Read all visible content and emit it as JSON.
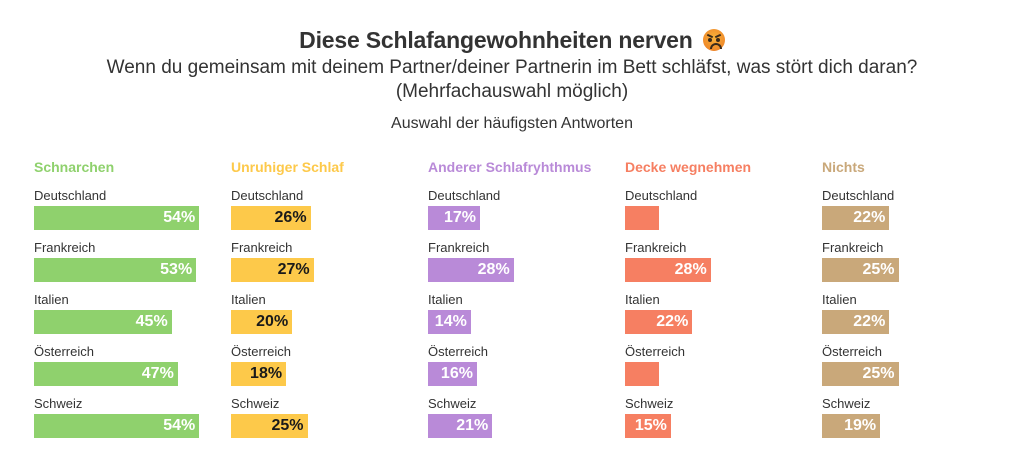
{
  "header": {
    "title": "Diese Schlafangewohnheiten nerven",
    "emoji": "angry-face",
    "subtitle": "Wenn du gemeinsam mit deinem Partner/deiner Partnerin im Bett schläfst, was stört dich daran?",
    "subtitle2": "(Mehrfachauswahl möglich)",
    "note": "Auswahl der häufigsten Antworten"
  },
  "chart_data": {
    "type": "bar",
    "orientation": "horizontal",
    "title": "Diese Schlafangewohnheiten nerven",
    "subtitle": "Wenn du gemeinsam mit deinem Partner/deiner Partnerin im Bett schläfst, was stört dich daran? (Mehrfachauswahl möglich)",
    "annotation": "Auswahl der häufigsten Antworten",
    "categories": [
      "Deutschland",
      "Frankreich",
      "Italien",
      "Österreich",
      "Schweiz"
    ],
    "unit": "%",
    "xlim": [
      0,
      60
    ],
    "panels": [
      {
        "name": "Schnarchen",
        "color": "#8fd16d",
        "label_color": "#ffffff",
        "values": [
          54,
          53,
          45,
          47,
          54
        ],
        "labels": [
          "54%",
          "53%",
          "45%",
          "47%",
          "54%"
        ]
      },
      {
        "name": "Unruhiger Schlaf",
        "color": "#fdc94a",
        "label_color": "#1a1a1a",
        "values": [
          26,
          27,
          20,
          18,
          25
        ],
        "labels": [
          "26%",
          "27%",
          "20%",
          "18%",
          "25%"
        ]
      },
      {
        "name": "Anderer Schlafryhthmus",
        "color": "#b98ad8",
        "label_color": "#ffffff",
        "values": [
          17,
          28,
          14,
          16,
          21
        ],
        "labels": [
          "17%",
          "28%",
          "14%",
          "16%",
          "21%"
        ]
      },
      {
        "name": "Decke wegnehmen",
        "color": "#f67f62",
        "label_color": "#ffffff",
        "values": [
          11,
          28,
          22,
          11,
          15
        ],
        "labels": [
          "",
          "28%",
          "22%",
          "",
          "15%"
        ]
      },
      {
        "name": "Nichts",
        "color": "#c9a87a",
        "label_color": "#ffffff",
        "values": [
          22,
          25,
          22,
          25,
          19
        ],
        "labels": [
          "22%",
          "25%",
          "22%",
          "25%",
          "19%"
        ]
      }
    ]
  }
}
